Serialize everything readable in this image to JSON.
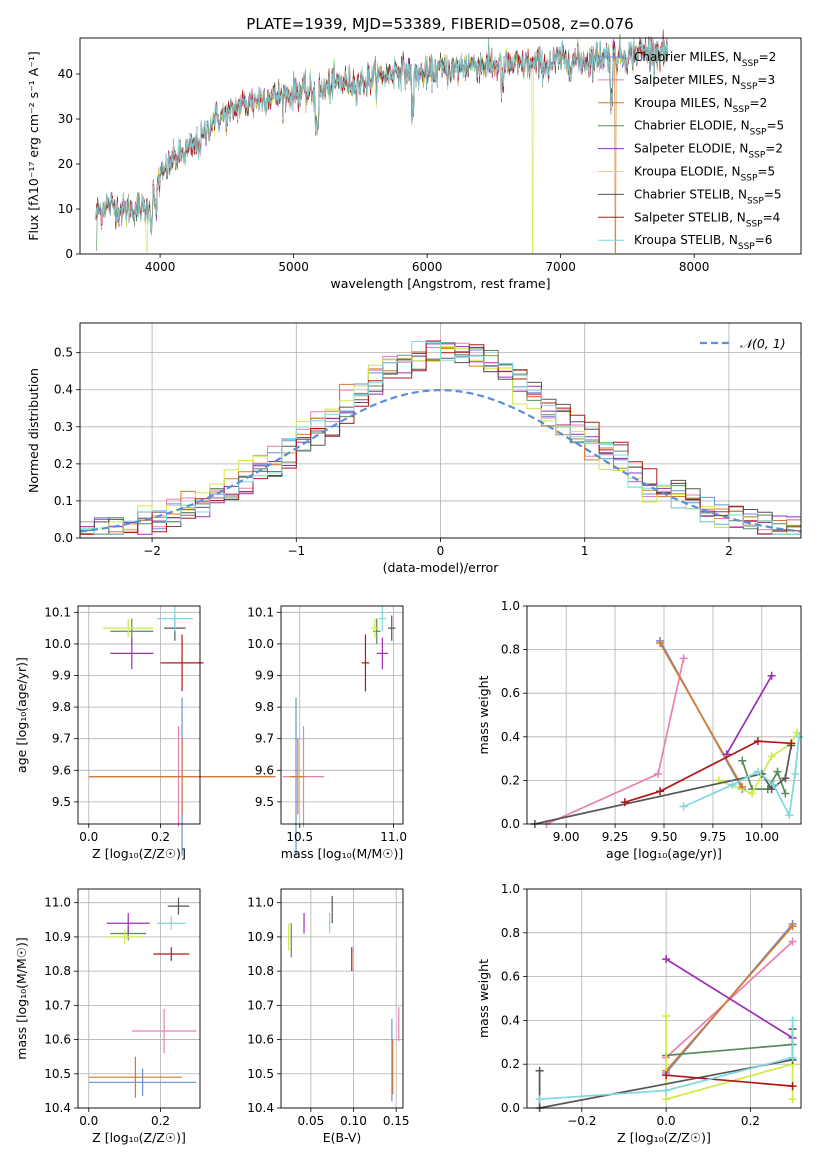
{
  "figure_title": "PLATE=1939, MJD=53389, FIBERID=0508, z=0.076",
  "colors": {
    "chabrier_miles": "#6a8fd8",
    "salpeter_miles": "#e87fb5",
    "kroupa_miles": "#d57c2c",
    "chabrier_elodie": "#5a8a5a",
    "salpeter_elodie": "#9b30b8",
    "kroupa_elodie": "#cfe84a",
    "chabrier_stelib": "#555555",
    "salpeter_stelib": "#b01818",
    "kroupa_stelib": "#7fd8dc",
    "gaussian": "#5b8fd6"
  },
  "models": [
    {
      "key": "chabrier_miles",
      "name": "Chabrier MILES, N",
      "sub": "SSP",
      "eq": "=2"
    },
    {
      "key": "salpeter_miles",
      "name": "Salpeter MILES, N",
      "sub": "SSP",
      "eq": "=3"
    },
    {
      "key": "kroupa_miles",
      "name": "Kroupa MILES, N",
      "sub": "SSP",
      "eq": "=2"
    },
    {
      "key": "chabrier_elodie",
      "name": "Chabrier ELODIE, N",
      "sub": "SSP",
      "eq": "=5"
    },
    {
      "key": "salpeter_elodie",
      "name": "Salpeter ELODIE, N",
      "sub": "SSP",
      "eq": "=2"
    },
    {
      "key": "kroupa_elodie",
      "name": "Kroupa ELODIE, N",
      "sub": "SSP",
      "eq": "=5"
    },
    {
      "key": "chabrier_stelib",
      "name": "Chabrier STELIB, N",
      "sub": "SSP",
      "eq": "=5"
    },
    {
      "key": "salpeter_stelib",
      "name": "Salpeter STELIB, N",
      "sub": "SSP",
      "eq": "=4"
    },
    {
      "key": "kroupa_stelib",
      "name": "Kroupa STELIB, N",
      "sub": "SSP",
      "eq": "=6"
    }
  ],
  "chart_data": [
    {
      "id": "spectrum",
      "type": "line",
      "xlabel": "wavelength [Angstrom, rest frame]",
      "ylabel": "Flux [fλ10⁻¹⁷ erg cm⁻² s⁻¹ A⁻¹]",
      "xlim": [
        3400,
        8800
      ],
      "ylim": [
        0,
        48
      ],
      "xticks": [
        4000,
        5000,
        6000,
        7000,
        8000
      ],
      "yticks": [
        0,
        10,
        20,
        30,
        40
      ],
      "grid": false,
      "legend": "right",
      "continuum": [
        [
          3520,
          9
        ],
        [
          3600,
          11
        ],
        [
          3700,
          10
        ],
        [
          3800,
          10
        ],
        [
          3900,
          10
        ],
        [
          3950,
          14
        ],
        [
          4000,
          17
        ],
        [
          4100,
          21
        ],
        [
          4200,
          23
        ],
        [
          4300,
          25
        ],
        [
          4400,
          30
        ],
        [
          4500,
          31
        ],
        [
          4600,
          33
        ],
        [
          4700,
          34
        ],
        [
          4800,
          35
        ],
        [
          4900,
          35
        ],
        [
          5000,
          36
        ],
        [
          5100,
          36
        ],
        [
          5200,
          36
        ],
        [
          5300,
          38
        ],
        [
          5400,
          38
        ],
        [
          5500,
          38
        ],
        [
          5600,
          39
        ],
        [
          5700,
          40
        ],
        [
          5800,
          41
        ],
        [
          5900,
          40
        ],
        [
          6000,
          40
        ],
        [
          6100,
          41
        ],
        [
          6200,
          41
        ],
        [
          6300,
          42
        ],
        [
          6400,
          42
        ],
        [
          6500,
          42
        ],
        [
          6600,
          42
        ],
        [
          6700,
          42
        ],
        [
          6800,
          42
        ],
        [
          6900,
          42
        ],
        [
          7000,
          43
        ],
        [
          7100,
          43
        ],
        [
          7200,
          43
        ],
        [
          7300,
          44
        ],
        [
          7400,
          44
        ],
        [
          7500,
          44
        ],
        [
          7600,
          45
        ],
        [
          7700,
          45
        ],
        [
          7800,
          45
        ]
      ]
    },
    {
      "id": "residuals",
      "type": "step-histogram",
      "xlabel": "(data-model)/error",
      "ylabel": "Normed distribution",
      "xlim": [
        -2.5,
        2.5
      ],
      "ylim": [
        0,
        0.58
      ],
      "xticks": [
        -2,
        -1,
        0,
        1,
        2
      ],
      "yticks": [
        0.0,
        0.1,
        0.2,
        0.3,
        0.4,
        0.5
      ],
      "grid": true,
      "legend": "top-right",
      "legend_label": "𝒩(0, 1)",
      "bin_width": 0.1
    },
    {
      "id": "z-age",
      "type": "errorbar",
      "xlabel": "Z [log₁₀(Z/Z☉)]",
      "ylabel": "age  [log₁₀(age/yr)]",
      "xlim": [
        -0.03,
        0.31
      ],
      "ylim": [
        9.43,
        10.12
      ],
      "xticks": [
        0.0,
        0.2
      ],
      "yticks": [
        9.5,
        9.6,
        9.7,
        9.8,
        9.9,
        10.0,
        10.1
      ],
      "grid": true,
      "points": [
        {
          "key": "chabrier_miles",
          "x": 0.26,
          "y": 9.58,
          "xerr": 0.26,
          "yerr": 0.25
        },
        {
          "key": "salpeter_miles",
          "x": 0.25,
          "y": 9.58,
          "xerr": 0.25,
          "yerr": 0.16
        },
        {
          "key": "kroupa_miles",
          "x": 0.26,
          "y": 9.58,
          "xerr": 0.26,
          "yerr": 0.12
        },
        {
          "key": "chabrier_elodie",
          "x": 0.12,
          "y": 10.04,
          "xerr": 0.06,
          "yerr": 0.04
        },
        {
          "key": "salpeter_elodie",
          "x": 0.12,
          "y": 9.97,
          "xerr": 0.06,
          "yerr": 0.05
        },
        {
          "key": "kroupa_elodie",
          "x": 0.11,
          "y": 10.05,
          "xerr": 0.07,
          "yerr": 0.03
        },
        {
          "key": "chabrier_stelib",
          "x": 0.24,
          "y": 10.05,
          "xerr": 0.03,
          "yerr": 0.04
        },
        {
          "key": "salpeter_stelib",
          "x": 0.26,
          "y": 9.94,
          "xerr": 0.06,
          "yerr": 0.09
        },
        {
          "key": "kroupa_stelib",
          "x": 0.24,
          "y": 10.08,
          "xerr": 0.05,
          "yerr": 0.04
        }
      ]
    },
    {
      "id": "mass-age",
      "type": "errorbar",
      "xlabel": "mass [log₁₀(M/M☉)]",
      "ylabel": "",
      "xlim": [
        10.4,
        11.05
      ],
      "ylim": [
        9.43,
        10.12
      ],
      "xticks": [
        10.5,
        11.0
      ],
      "yticks": [
        9.5,
        9.6,
        9.7,
        9.8,
        9.9,
        10.0,
        10.1
      ],
      "grid": true,
      "points": [
        {
          "key": "chabrier_miles",
          "x": 10.48,
          "y": 9.58,
          "xerr": 0.04,
          "yerr": 0.25
        },
        {
          "key": "salpeter_miles",
          "x": 10.52,
          "y": 9.58,
          "xerr": 0.11,
          "yerr": 0.16
        },
        {
          "key": "kroupa_miles",
          "x": 10.49,
          "y": 9.58,
          "xerr": 0.04,
          "yerr": 0.12
        },
        {
          "key": "chabrier_elodie",
          "x": 10.91,
          "y": 10.04,
          "xerr": 0.02,
          "yerr": 0.04
        },
        {
          "key": "salpeter_elodie",
          "x": 10.94,
          "y": 9.97,
          "xerr": 0.03,
          "yerr": 0.05
        },
        {
          "key": "kroupa_elodie",
          "x": 10.9,
          "y": 10.05,
          "xerr": 0.02,
          "yerr": 0.03
        },
        {
          "key": "chabrier_stelib",
          "x": 10.99,
          "y": 10.05,
          "xerr": 0.02,
          "yerr": 0.04
        },
        {
          "key": "salpeter_stelib",
          "x": 10.85,
          "y": 9.94,
          "xerr": 0.02,
          "yerr": 0.09
        },
        {
          "key": "kroupa_stelib",
          "x": 10.94,
          "y": 10.08,
          "xerr": 0.02,
          "yerr": 0.04
        }
      ]
    },
    {
      "id": "age-weight",
      "type": "line",
      "xlabel": "age  [log₁₀(age/yr)]",
      "ylabel": "mass weight",
      "xlim": [
        8.8,
        10.2
      ],
      "ylim": [
        0,
        1.0
      ],
      "xticks": [
        9.0,
        9.25,
        9.5,
        9.75,
        10.0
      ],
      "yticks": [
        0.0,
        0.2,
        0.4,
        0.6,
        0.8,
        1.0
      ],
      "grid": true,
      "series": [
        {
          "key": "chabrier_miles",
          "x": [
            9.48,
            9.9
          ],
          "y": [
            0.84,
            0.16
          ]
        },
        {
          "key": "salpeter_miles",
          "x": [
            8.9,
            9.47,
            9.6
          ],
          "y": [
            0.0,
            0.23,
            0.76
          ]
        },
        {
          "key": "kroupa_miles",
          "x": [
            9.48,
            9.9
          ],
          "y": [
            0.83,
            0.17
          ]
        },
        {
          "key": "chabrier_elodie",
          "x": [
            9.9,
            9.95,
            10.03,
            10.08,
            10.12
          ],
          "y": [
            0.29,
            0.16,
            0.16,
            0.24,
            0.14
          ]
        },
        {
          "key": "salpeter_elodie",
          "x": [
            9.82,
            10.05
          ],
          "y": [
            0.32,
            0.68
          ]
        },
        {
          "key": "kroupa_elodie",
          "x": [
            9.78,
            9.95,
            10.05,
            10.15,
            10.18
          ],
          "y": [
            0.2,
            0.14,
            0.31,
            0.37,
            0.42
          ]
        },
        {
          "key": "chabrier_stelib",
          "x": [
            8.84,
            10.0,
            10.05,
            10.12,
            10.15
          ],
          "y": [
            0.0,
            0.23,
            0.16,
            0.21,
            0.36
          ]
        },
        {
          "key": "salpeter_stelib",
          "x": [
            9.3,
            9.48,
            9.98,
            10.15
          ],
          "y": [
            0.1,
            0.15,
            0.38,
            0.37
          ]
        },
        {
          "key": "kroupa_stelib",
          "x": [
            9.6,
            9.85,
            9.98,
            10.06,
            10.14,
            10.17,
            10.19
          ],
          "y": [
            0.08,
            0.18,
            0.24,
            0.18,
            0.04,
            0.23,
            0.4
          ]
        }
      ]
    },
    {
      "id": "z-mass",
      "type": "errorbar",
      "xlabel": "Z [log₁₀(Z/Z☉)]",
      "ylabel": "mass [log₁₀(M/M☉)]",
      "xlim": [
        -0.03,
        0.31
      ],
      "ylim": [
        10.4,
        11.04
      ],
      "xticks": [
        0.0,
        0.2
      ],
      "yticks": [
        10.4,
        10.5,
        10.6,
        10.7,
        10.8,
        10.9,
        11.0
      ],
      "grid": true,
      "points": [
        {
          "key": "chabrier_miles",
          "x": 0.15,
          "y": 10.475,
          "xerr": 0.15,
          "yerr": 0.04
        },
        {
          "key": "salpeter_miles",
          "x": 0.21,
          "y": 10.625,
          "xerr": 0.09,
          "yerr": 0.065
        },
        {
          "key": "kroupa_miles",
          "x": 0.13,
          "y": 10.49,
          "xerr": 0.13,
          "yerr": 0.06
        },
        {
          "key": "chabrier_elodie",
          "x": 0.11,
          "y": 10.91,
          "xerr": 0.05,
          "yerr": 0.02
        },
        {
          "key": "salpeter_elodie",
          "x": 0.11,
          "y": 10.94,
          "xerr": 0.06,
          "yerr": 0.03
        },
        {
          "key": "kroupa_elodie",
          "x": 0.1,
          "y": 10.9,
          "xerr": 0.05,
          "yerr": 0.02
        },
        {
          "key": "chabrier_stelib",
          "x": 0.25,
          "y": 10.99,
          "xerr": 0.03,
          "yerr": 0.025
        },
        {
          "key": "salpeter_stelib",
          "x": 0.23,
          "y": 10.85,
          "xerr": 0.05,
          "yerr": 0.02
        },
        {
          "key": "kroupa_stelib",
          "x": 0.23,
          "y": 10.94,
          "xerr": 0.04,
          "yerr": 0.02
        }
      ]
    },
    {
      "id": "ebv-mass",
      "type": "errorbar",
      "xlabel": "E(B-V)",
      "ylabel": "",
      "xlim": [
        0.015,
        0.158
      ],
      "ylim": [
        10.4,
        11.04
      ],
      "xticks": [
        0.05,
        0.1,
        0.15
      ],
      "yticks": [
        10.4,
        10.5,
        10.6,
        10.7,
        10.8,
        10.9,
        11.0
      ],
      "grid": true,
      "points": [
        {
          "key": "chabrier_miles",
          "x": 0.145,
          "y": 10.54,
          "xerr": 0.0,
          "yerr": 0.12
        },
        {
          "key": "salpeter_miles",
          "x": 0.153,
          "y": 10.645,
          "xerr": 0.0,
          "yerr": 0.05
        },
        {
          "key": "kroupa_miles",
          "x": 0.146,
          "y": 10.52,
          "xerr": 0.0,
          "yerr": 0.08
        },
        {
          "key": "chabrier_elodie",
          "x": 0.027,
          "y": 10.89,
          "xerr": 0.0,
          "yerr": 0.05
        },
        {
          "key": "salpeter_elodie",
          "x": 0.042,
          "y": 10.94,
          "xerr": 0.0,
          "yerr": 0.03
        },
        {
          "key": "kroupa_elodie",
          "x": 0.024,
          "y": 10.9,
          "xerr": 0.0,
          "yerr": 0.04
        },
        {
          "key": "chabrier_stelib",
          "x": 0.075,
          "y": 10.98,
          "xerr": 0.0,
          "yerr": 0.04
        },
        {
          "key": "salpeter_stelib",
          "x": 0.098,
          "y": 10.835,
          "xerr": 0.0,
          "yerr": 0.035
        },
        {
          "key": "kroupa_stelib",
          "x": 0.072,
          "y": 10.94,
          "xerr": 0.0,
          "yerr": 0.03
        }
      ]
    },
    {
      "id": "z-weight",
      "type": "line",
      "xlabel": "Z [log₁₀(Z/Z☉)]",
      "ylabel": "mass weight",
      "xlim": [
        -0.33,
        0.32
      ],
      "ylim": [
        0,
        1.0
      ],
      "xticks": [
        -0.2,
        0.0,
        0.2
      ],
      "yticks": [
        0.0,
        0.2,
        0.4,
        0.6,
        0.8,
        1.0
      ],
      "grid": true,
      "series": [
        {
          "key": "chabrier_miles",
          "x": [
            0.0,
            0.3
          ],
          "y": [
            0.16,
            0.84
          ]
        },
        {
          "key": "salpeter_miles",
          "x": [
            0.0,
            0.3
          ],
          "y": [
            0.23,
            0.76
          ]
        },
        {
          "key": "kroupa_miles",
          "x": [
            0.0,
            0.3
          ],
          "y": [
            0.17,
            0.83
          ]
        },
        {
          "key": "chabrier_elodie",
          "x": [
            0.0,
            0.3
          ],
          "y": [
            0.24,
            0.29
          ]
        },
        {
          "key": "salpeter_elodie",
          "x": [
            0.0,
            0.3
          ],
          "y": [
            0.68,
            0.32
          ]
        },
        {
          "key": "kroupa_elodie",
          "x": [
            0.0,
            0.0,
            0.3,
            0.3
          ],
          "y": [
            0.42,
            0.04,
            0.2,
            0.04
          ]
        },
        {
          "key": "chabrier_stelib",
          "x": [
            -0.3,
            -0.3,
            0.3,
            0.3
          ],
          "y": [
            0.17,
            0.0,
            0.22,
            0.36
          ]
        },
        {
          "key": "salpeter_stelib",
          "x": [
            0.0,
            0.3
          ],
          "y": [
            0.15,
            0.1
          ]
        },
        {
          "key": "kroupa_stelib",
          "x": [
            -0.3,
            0.0,
            0.3,
            0.3
          ],
          "y": [
            0.04,
            0.08,
            0.23,
            0.4
          ]
        }
      ]
    }
  ]
}
